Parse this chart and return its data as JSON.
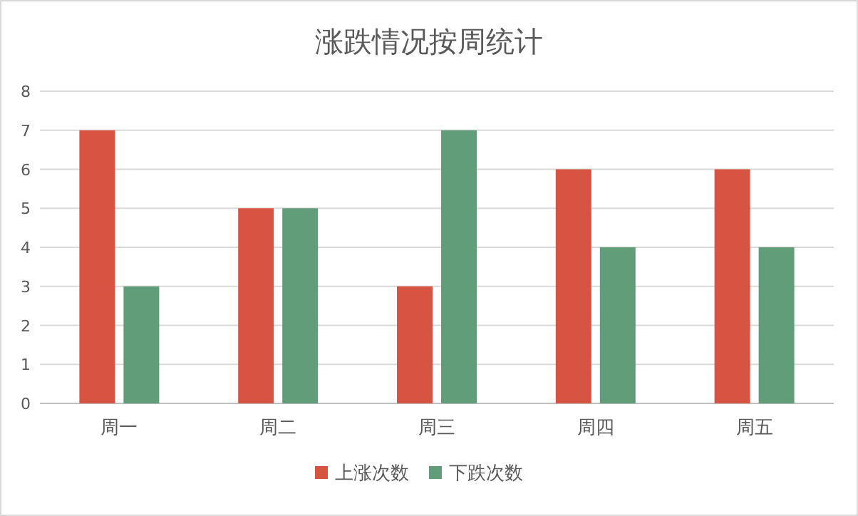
{
  "chart_data": {
    "type": "bar",
    "title": "涨跌情况按周统计",
    "categories": [
      "周一",
      "周二",
      "周三",
      "周四",
      "周五"
    ],
    "series": [
      {
        "name": "上涨次数",
        "color": "#d75442",
        "values": [
          7,
          5,
          3,
          6,
          6
        ]
      },
      {
        "name": "下跌次数",
        "color": "#629d79",
        "values": [
          3,
          5,
          7,
          4,
          4
        ]
      }
    ],
    "ylim": [
      0,
      8
    ],
    "yticks": [
      0,
      1,
      2,
      3,
      4,
      5,
      6,
      7,
      8
    ],
    "grid": "y",
    "legend": "bottom"
  }
}
